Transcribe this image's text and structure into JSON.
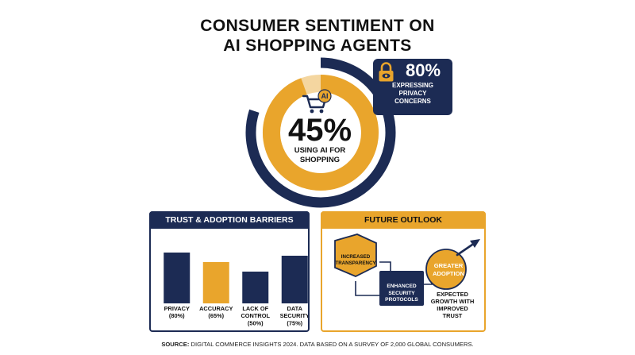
{
  "title": {
    "line1": "CONSUMER SENTIMENT ON",
    "line2": "AI SHOPPING AGENTS"
  },
  "colors": {
    "navy": "#1c2b54",
    "gold": "#e9a52c",
    "background": "#ffffff"
  },
  "center_stat": {
    "value": "45%",
    "label_line1": "USING AI FOR",
    "label_line2": "SHOPPING",
    "icon": "ai-shopping-cart-icon",
    "icon_badge": "AI"
  },
  "privacy_stat": {
    "value": "80%",
    "label_line1": "EXPRESSING",
    "label_line2": "PRIVACY",
    "label_line3": "CONCERNS",
    "icon": "lock-icon"
  },
  "barriers_panel": {
    "header": "TRUST & ADOPTION BARRIERS"
  },
  "outlook_panel": {
    "header": "FUTURE OUTLOOK",
    "step1": {
      "line1": "INCREASED",
      "line2": "TRANSPARENCY"
    },
    "step2": {
      "line1": "ENHANCED",
      "line2": "SECURITY",
      "line3": "PROTOCOLS"
    },
    "step3": {
      "line1": "GREATER",
      "line2": "ADOPTION"
    },
    "note": {
      "line1": "EXPECTED",
      "line2": "GROWTH WITH",
      "line3": "IMPROVED",
      "line4": "TRUST"
    },
    "arrow_icon": "growth-arrow-icon"
  },
  "source": {
    "label": "SOURCE:",
    "text": "DIGITAL COMMERCE INSIGHTS 2024. DATA BASED ON A SURVEY OF 2,000 GLOBAL CONSUMERS."
  },
  "chart_data": [
    {
      "type": "pie",
      "values": [
        45,
        80
      ],
      "labels": [
        "USING AI FOR SHOPPING",
        "EXPRESSING PRIVACY CONCERNS"
      ],
      "colors": [
        "#e9a52c",
        "#1c2b54"
      ]
    },
    {
      "type": "bar",
      "title": "TRUST & ADOPTION BARRIERS",
      "categories": [
        [
          "PRIVACY",
          "(80%)"
        ],
        [
          "ACCURACY",
          "(65%)"
        ],
        [
          "LACK OF",
          "CONTROL",
          "(50%)"
        ],
        [
          "DATA",
          "SECURITY",
          "(75%)"
        ]
      ],
      "values": [
        80,
        65,
        50,
        75
      ],
      "colors": [
        "#1c2b54",
        "#e9a52c",
        "#1c2b54",
        "#1c2b54"
      ],
      "ylim": [
        0,
        100
      ],
      "grid": false
    }
  ]
}
